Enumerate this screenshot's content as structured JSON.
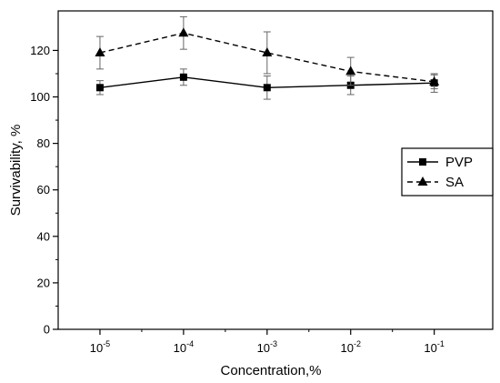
{
  "chart_data": {
    "type": "line",
    "xlabel": "Concentration,%",
    "ylabel": "Survivability, %",
    "x_tick_labels": [
      {
        "base": "10",
        "exp": "-5"
      },
      {
        "base": "10",
        "exp": "-4"
      },
      {
        "base": "10",
        "exp": "-3"
      },
      {
        "base": "10",
        "exp": "-2"
      },
      {
        "base": "10",
        "exp": "-1"
      }
    ],
    "x_log_exponents": [
      -5,
      -4,
      -3,
      -2,
      -1
    ],
    "x_range_exponents": [
      -5.5,
      -0.3
    ],
    "ylim": [
      0,
      137
    ],
    "y_ticks": [
      "0",
      "20",
      "40",
      "60",
      "80",
      "100",
      "120"
    ],
    "y_tick_values": [
      0,
      20,
      40,
      60,
      80,
      100,
      120
    ],
    "x_log_scale": true,
    "grid": false,
    "legend_position": "right",
    "series": [
      {
        "name": "PVP",
        "line_style": "solid",
        "marker": "square",
        "values": [
          104,
          108.5,
          104,
          105,
          106
        ],
        "errors": [
          3,
          3.5,
          5,
          4,
          4
        ]
      },
      {
        "name": "SA",
        "line_style": "dashed",
        "marker": "triangle",
        "values": [
          119,
          127.5,
          119,
          111,
          106.5
        ],
        "errors": [
          7,
          7,
          9,
          6,
          3
        ]
      }
    ]
  }
}
